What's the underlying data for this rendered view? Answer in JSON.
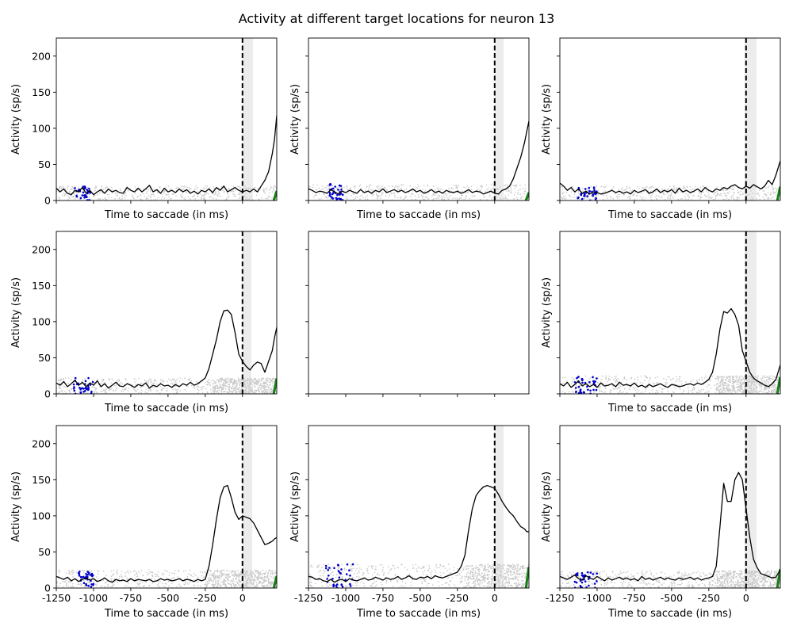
{
  "title": "Activity at different target locations for neuron 13",
  "chart_data": {
    "type": "line",
    "title": "Activity at different target locations for neuron 13",
    "xlabel": "Time to saccade (in ms)",
    "ylabel": "Activity (sp/s)",
    "xlim": [
      -1250,
      230
    ],
    "ylim": [
      0,
      225
    ],
    "xticks": [
      -1250,
      -1000,
      -750,
      -500,
      -250,
      0
    ],
    "xtick_labels": [
      "-1250",
      "-1000",
      "-750",
      "-500",
      "-250",
      "0"
    ],
    "yticks": [
      0,
      50,
      100,
      150,
      200
    ],
    "ytick_labels": [
      "0",
      "50",
      "100",
      "150",
      "200"
    ],
    "saccade_marker_x": 0,
    "colors": {
      "mean_line": "#000000",
      "saccade_line": "#000000",
      "trial_dots": "#c8c8c8",
      "target_onset_dots": "#0000cc",
      "end_dots": "#1a7f1a",
      "shaded_window": "#ececec"
    },
    "panels": [
      {
        "row": 0,
        "col": 0,
        "show_xlabel": true,
        "show_xticklabels": false,
        "show_yticklabels": true,
        "empty": false,
        "shade": [
          0,
          70
        ],
        "raster_max": 20,
        "dense_raster_from": null,
        "mean_x": [
          -1250,
          -1225,
          -1200,
          -1175,
          -1150,
          -1125,
          -1100,
          -1075,
          -1050,
          -1025,
          -1000,
          -975,
          -950,
          -925,
          -900,
          -875,
          -850,
          -825,
          -800,
          -775,
          -750,
          -725,
          -700,
          -675,
          -650,
          -625,
          -600,
          -575,
          -550,
          -525,
          -500,
          -475,
          -450,
          -425,
          -400,
          -375,
          -350,
          -325,
          -300,
          -275,
          -250,
          -225,
          -200,
          -175,
          -150,
          -125,
          -100,
          -75,
          -50,
          -25,
          0,
          25,
          50,
          75,
          100,
          125,
          150,
          175,
          200,
          215,
          230
        ],
        "mean_y": [
          17,
          12,
          16,
          10,
          8,
          14,
          12,
          18,
          10,
          14,
          8,
          12,
          15,
          10,
          16,
          12,
          14,
          11,
          10,
          18,
          14,
          12,
          17,
          12,
          16,
          21,
          12,
          15,
          10,
          17,
          12,
          14,
          11,
          16,
          12,
          15,
          10,
          13,
          9,
          14,
          12,
          16,
          11,
          18,
          14,
          20,
          12,
          15,
          18,
          14,
          12,
          14,
          12,
          16,
          12,
          20,
          28,
          40,
          65,
          85,
          118
        ],
        "blue_x": [
          -1130,
          -1020
        ],
        "blue_ymax": 20,
        "end_y": [
          0,
          12
        ]
      },
      {
        "row": 0,
        "col": 1,
        "show_xlabel": true,
        "show_xticklabels": false,
        "show_yticklabels": false,
        "empty": false,
        "shade": [
          0,
          60
        ],
        "raster_max": 22,
        "dense_raster_from": null,
        "mean_x": [
          -1250,
          -1225,
          -1200,
          -1175,
          -1150,
          -1125,
          -1100,
          -1075,
          -1050,
          -1025,
          -1000,
          -975,
          -950,
          -925,
          -900,
          -875,
          -850,
          -825,
          -800,
          -775,
          -750,
          -725,
          -700,
          -675,
          -650,
          -625,
          -600,
          -575,
          -550,
          -525,
          -500,
          -475,
          -450,
          -425,
          -400,
          -375,
          -350,
          -325,
          -300,
          -275,
          -250,
          -225,
          -200,
          -175,
          -150,
          -125,
          -100,
          -75,
          -50,
          -25,
          0,
          25,
          50,
          75,
          100,
          125,
          150,
          175,
          200,
          215,
          230
        ],
        "mean_y": [
          16,
          14,
          11,
          13,
          12,
          10,
          15,
          12,
          9,
          13,
          11,
          14,
          12,
          10,
          15,
          11,
          13,
          10,
          14,
          12,
          16,
          11,
          13,
          15,
          12,
          14,
          11,
          13,
          16,
          12,
          14,
          10,
          12,
          15,
          11,
          13,
          10,
          14,
          12,
          11,
          13,
          10,
          12,
          15,
          11,
          13,
          12,
          9,
          11,
          13,
          10,
          9,
          14,
          16,
          20,
          30,
          45,
          60,
          80,
          95,
          110
        ],
        "blue_x": [
          -1130,
          -1020
        ],
        "blue_ymax": 24,
        "end_y": [
          0,
          10
        ]
      },
      {
        "row": 0,
        "col": 2,
        "show_xlabel": true,
        "show_xticklabels": false,
        "show_yticklabels": false,
        "empty": false,
        "shade": [
          -10,
          70
        ],
        "raster_max": 20,
        "dense_raster_from": null,
        "mean_x": [
          -1250,
          -1225,
          -1200,
          -1175,
          -1150,
          -1125,
          -1100,
          -1075,
          -1050,
          -1025,
          -1000,
          -975,
          -950,
          -925,
          -900,
          -875,
          -850,
          -825,
          -800,
          -775,
          -750,
          -725,
          -700,
          -675,
          -650,
          -625,
          -600,
          -575,
          -550,
          -525,
          -500,
          -475,
          -450,
          -425,
          -400,
          -375,
          -350,
          -325,
          -300,
          -275,
          -250,
          -225,
          -200,
          -175,
          -150,
          -125,
          -100,
          -75,
          -50,
          -25,
          0,
          25,
          50,
          75,
          100,
          125,
          150,
          175,
          200,
          215,
          230
        ],
        "mean_y": [
          24,
          20,
          14,
          18,
          12,
          16,
          10,
          13,
          9,
          12,
          11,
          9,
          10,
          12,
          14,
          11,
          13,
          10,
          12,
          9,
          14,
          11,
          13,
          15,
          10,
          12,
          16,
          11,
          14,
          12,
          15,
          10,
          17,
          12,
          14,
          11,
          13,
          16,
          12,
          18,
          14,
          12,
          16,
          14,
          18,
          16,
          20,
          22,
          18,
          16,
          20,
          17,
          22,
          19,
          16,
          20,
          28,
          22,
          35,
          45,
          55
        ],
        "blue_x": [
          -1130,
          -1000
        ],
        "blue_ymax": 18,
        "end_y": [
          0,
          18
        ]
      },
      {
        "row": 1,
        "col": 0,
        "show_xlabel": true,
        "show_xticklabels": false,
        "show_yticklabels": true,
        "empty": false,
        "shade": [
          0,
          60
        ],
        "raster_max": 22,
        "dense_raster_from": -200,
        "mean_x": [
          -1250,
          -1225,
          -1200,
          -1175,
          -1150,
          -1125,
          -1100,
          -1075,
          -1050,
          -1025,
          -1000,
          -975,
          -950,
          -925,
          -900,
          -875,
          -850,
          -825,
          -800,
          -775,
          -750,
          -725,
          -700,
          -675,
          -650,
          -625,
          -600,
          -575,
          -550,
          -525,
          -500,
          -475,
          -450,
          -425,
          -400,
          -375,
          -350,
          -325,
          -300,
          -275,
          -250,
          -225,
          -200,
          -175,
          -150,
          -125,
          -100,
          -75,
          -50,
          -25,
          0,
          25,
          50,
          75,
          100,
          125,
          150,
          175,
          200,
          215,
          230
        ],
        "mean_y": [
          15,
          12,
          17,
          10,
          14,
          19,
          12,
          16,
          10,
          15,
          12,
          18,
          10,
          14,
          8,
          12,
          16,
          11,
          10,
          14,
          12,
          9,
          13,
          11,
          15,
          8,
          12,
          10,
          14,
          11,
          12,
          9,
          13,
          10,
          14,
          12,
          16,
          12,
          14,
          18,
          22,
          35,
          55,
          75,
          100,
          115,
          116,
          110,
          85,
          55,
          45,
          38,
          33,
          40,
          44,
          42,
          30,
          45,
          60,
          78,
          92
        ],
        "blue_x": [
          -1150,
          -1000
        ],
        "blue_ymax": 22,
        "end_y": [
          0,
          20
        ]
      },
      {
        "row": 1,
        "col": 1,
        "show_xlabel": false,
        "show_xticklabels": false,
        "show_yticklabels": false,
        "empty": true
      },
      {
        "row": 1,
        "col": 2,
        "show_xlabel": true,
        "show_xticklabels": false,
        "show_yticklabels": false,
        "empty": false,
        "shade": [
          -10,
          70
        ],
        "raster_max": 25,
        "dense_raster_from": -200,
        "mean_x": [
          -1250,
          -1225,
          -1200,
          -1175,
          -1150,
          -1125,
          -1100,
          -1075,
          -1050,
          -1025,
          -1000,
          -975,
          -950,
          -925,
          -900,
          -875,
          -850,
          -825,
          -800,
          -775,
          -750,
          -725,
          -700,
          -675,
          -650,
          -625,
          -600,
          -575,
          -550,
          -525,
          -500,
          -475,
          -450,
          -425,
          -400,
          -375,
          -350,
          -325,
          -300,
          -275,
          -250,
          -225,
          -200,
          -175,
          -150,
          -125,
          -100,
          -75,
          -50,
          -25,
          0,
          25,
          50,
          75,
          100,
          125,
          150,
          175,
          200,
          215,
          230
        ],
        "mean_y": [
          14,
          11,
          16,
          9,
          13,
          18,
          11,
          14,
          10,
          13,
          9,
          15,
          11,
          12,
          14,
          10,
          16,
          12,
          13,
          11,
          15,
          10,
          12,
          9,
          13,
          10,
          12,
          14,
          11,
          9,
          13,
          12,
          10,
          11,
          13,
          14,
          12,
          15,
          13,
          16,
          20,
          30,
          55,
          90,
          114,
          112,
          118,
          110,
          95,
          60,
          45,
          30,
          22,
          18,
          15,
          12,
          10,
          14,
          20,
          30,
          40
        ],
        "blue_x": [
          -1150,
          -1000
        ],
        "blue_ymax": 24,
        "end_y": [
          0,
          22
        ]
      },
      {
        "row": 2,
        "col": 0,
        "show_xlabel": true,
        "show_xticklabels": true,
        "show_yticklabels": true,
        "empty": false,
        "shade": [
          0,
          65
        ],
        "raster_max": 25,
        "dense_raster_from": -250,
        "mean_x": [
          -1250,
          -1225,
          -1200,
          -1175,
          -1150,
          -1125,
          -1100,
          -1075,
          -1050,
          -1025,
          -1000,
          -975,
          -950,
          -925,
          -900,
          -875,
          -850,
          -825,
          -800,
          -775,
          -750,
          -725,
          -700,
          -675,
          -650,
          -625,
          -600,
          -575,
          -550,
          -525,
          -500,
          -475,
          -450,
          -425,
          -400,
          -375,
          -350,
          -325,
          -300,
          -275,
          -250,
          -225,
          -200,
          -175,
          -150,
          -125,
          -100,
          -75,
          -50,
          -25,
          0,
          25,
          50,
          75,
          100,
          125,
          150,
          175,
          200,
          215,
          230
        ],
        "mean_y": [
          16,
          14,
          12,
          15,
          10,
          13,
          9,
          12,
          14,
          11,
          13,
          9,
          11,
          14,
          10,
          8,
          12,
          10,
          11,
          9,
          13,
          10,
          12,
          11,
          10,
          12,
          9,
          10,
          13,
          11,
          12,
          10,
          11,
          13,
          10,
          12,
          11,
          9,
          12,
          10,
          12,
          30,
          60,
          95,
          125,
          140,
          142,
          125,
          105,
          95,
          100,
          98,
          96,
          90,
          80,
          70,
          60,
          62,
          65,
          68,
          70
        ],
        "blue_x": [
          -1100,
          -1000
        ],
        "blue_ymax": 24,
        "end_y": [
          0,
          15
        ]
      },
      {
        "row": 2,
        "col": 1,
        "show_xlabel": true,
        "show_xticklabels": true,
        "show_yticklabels": false,
        "empty": false,
        "shade": [
          0,
          60
        ],
        "raster_max": 33,
        "dense_raster_from": -200,
        "mean_x": [
          -1250,
          -1225,
          -1200,
          -1175,
          -1150,
          -1125,
          -1100,
          -1075,
          -1050,
          -1025,
          -1000,
          -975,
          -950,
          -925,
          -900,
          -875,
          -850,
          -825,
          -800,
          -775,
          -750,
          -725,
          -700,
          -675,
          -650,
          -625,
          -600,
          -575,
          -550,
          -525,
          -500,
          -475,
          -450,
          -425,
          -400,
          -375,
          -350,
          -325,
          -300,
          -275,
          -250,
          -225,
          -200,
          -175,
          -150,
          -125,
          -100,
          -75,
          -50,
          -25,
          0,
          25,
          50,
          75,
          100,
          125,
          150,
          175,
          200,
          215,
          230
        ],
        "mean_y": [
          16,
          15,
          12,
          13,
          10,
          9,
          12,
          8,
          11,
          12,
          9,
          13,
          11,
          10,
          12,
          14,
          11,
          12,
          15,
          13,
          11,
          14,
          12,
          13,
          16,
          12,
          14,
          17,
          13,
          12,
          15,
          14,
          16,
          13,
          17,
          15,
          14,
          16,
          18,
          20,
          22,
          30,
          45,
          80,
          110,
          128,
          135,
          140,
          142,
          140,
          138,
          130,
          120,
          112,
          105,
          100,
          92,
          85,
          82,
          78,
          78
        ],
        "blue_x": [
          -1150,
          -950
        ],
        "blue_ymax": 33,
        "end_y": [
          0,
          28
        ]
      },
      {
        "row": 2,
        "col": 2,
        "show_xlabel": true,
        "show_xticklabels": true,
        "show_yticklabels": false,
        "empty": false,
        "shade": [
          -10,
          70
        ],
        "raster_max": 24,
        "dense_raster_from": -200,
        "mean_x": [
          -1250,
          -1225,
          -1200,
          -1175,
          -1150,
          -1125,
          -1100,
          -1075,
          -1050,
          -1025,
          -1000,
          -975,
          -950,
          -925,
          -900,
          -875,
          -850,
          -825,
          -800,
          -775,
          -750,
          -725,
          -700,
          -675,
          -650,
          -625,
          -600,
          -575,
          -550,
          -525,
          -500,
          -475,
          -450,
          -425,
          -400,
          -375,
          -350,
          -325,
          -300,
          -275,
          -250,
          -225,
          -200,
          -175,
          -150,
          -125,
          -100,
          -75,
          -50,
          -25,
          0,
          25,
          50,
          75,
          100,
          125,
          150,
          175,
          200,
          215,
          230
        ],
        "mean_y": [
          16,
          14,
          12,
          15,
          18,
          13,
          11,
          17,
          14,
          12,
          16,
          13,
          10,
          14,
          11,
          13,
          15,
          12,
          14,
          11,
          13,
          10,
          16,
          12,
          14,
          11,
          13,
          15,
          12,
          14,
          12,
          11,
          14,
          12,
          13,
          15,
          12,
          14,
          11,
          13,
          14,
          16,
          30,
          85,
          145,
          120,
          120,
          150,
          160,
          150,
          110,
          70,
          40,
          28,
          20,
          18,
          16,
          14,
          15,
          20,
          25
        ],
        "blue_x": [
          -1150,
          -1000
        ],
        "blue_ymax": 22,
        "end_y": [
          0,
          25
        ]
      }
    ]
  }
}
